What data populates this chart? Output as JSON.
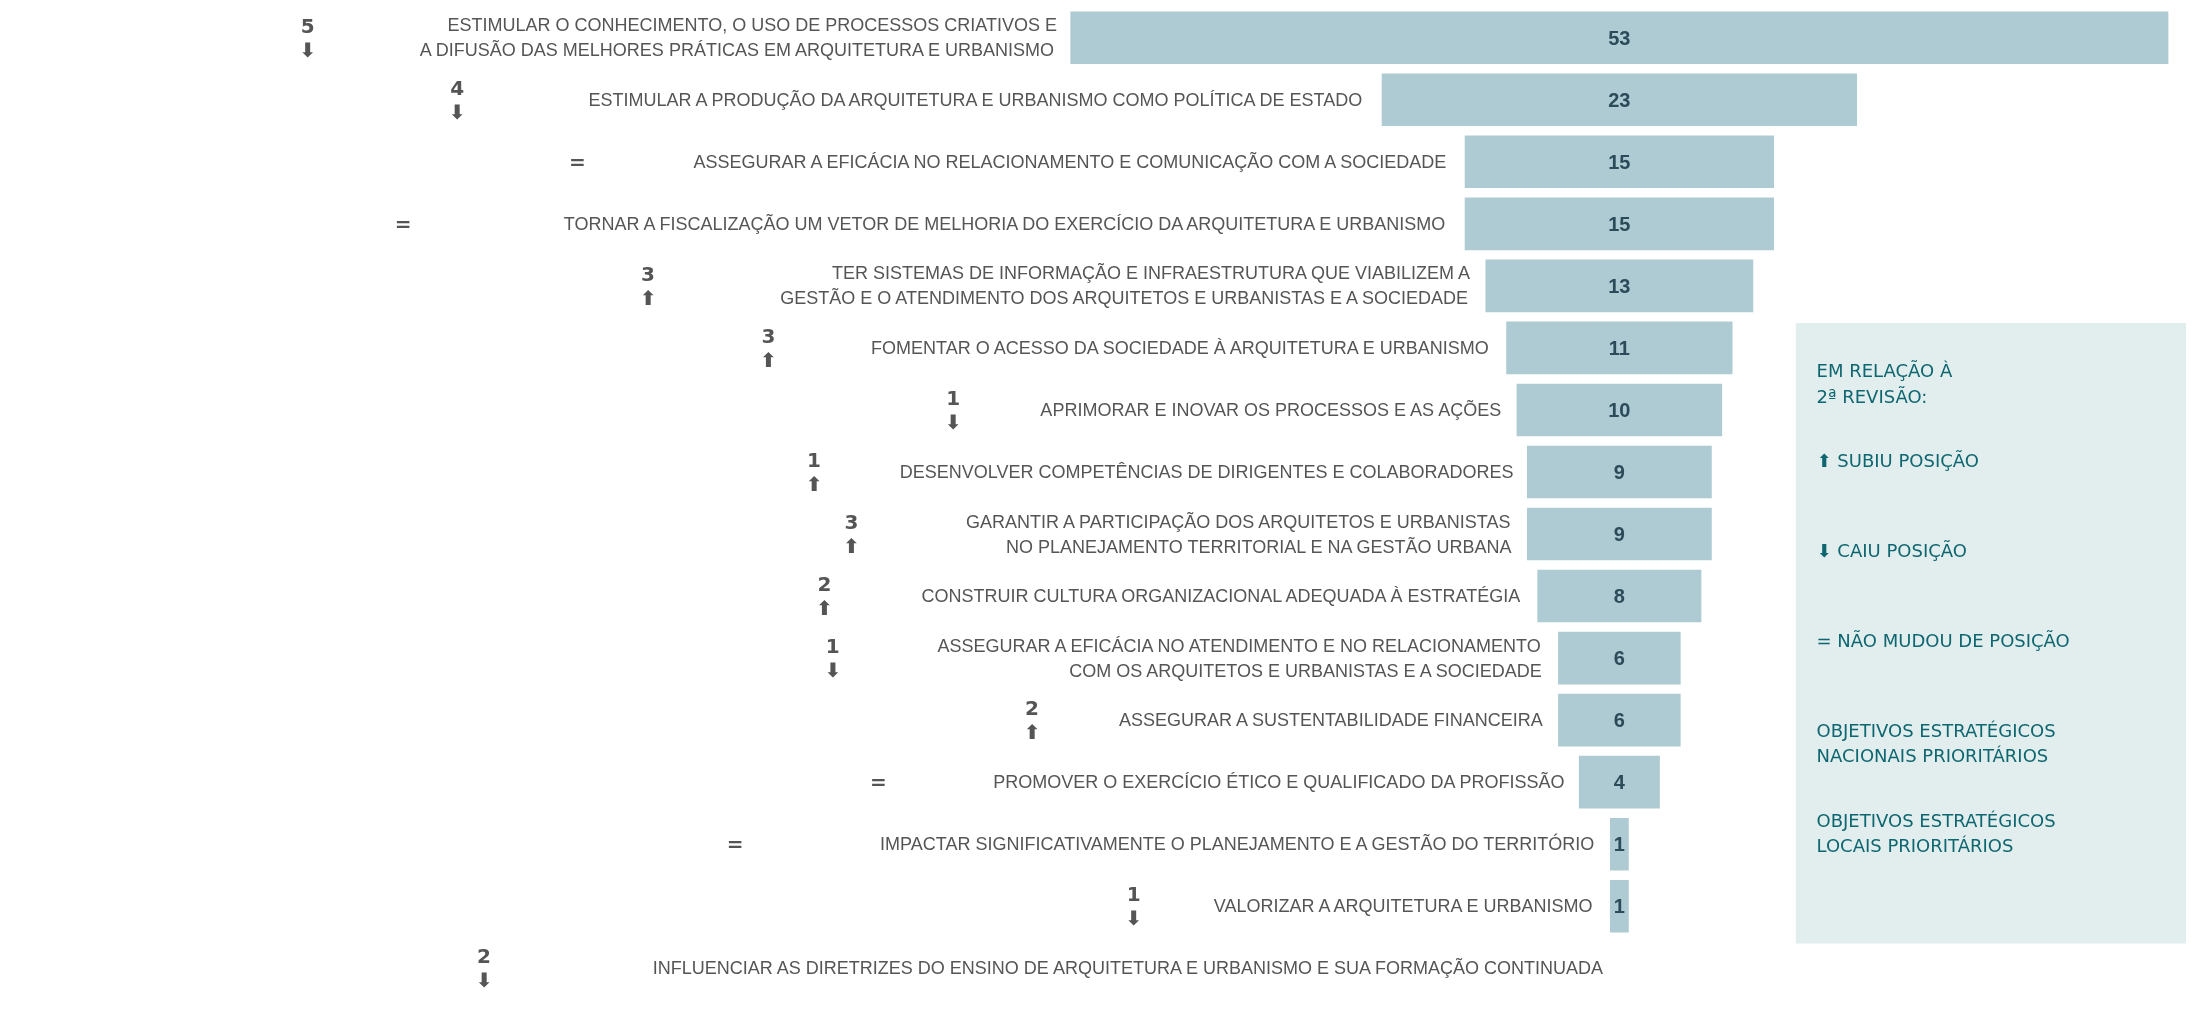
{
  "chart_data": {
    "type": "other",
    "categories": [
      "ESTIMULAR O CONHECIMENTO, O USO DE PROCESSOS CRIATIVOS E A DIFUSÃO DAS MELHORES PRÁTICAS EM ARQUITETURA E URBANISMO",
      "ESTIMULAR A PRODUÇÃO DA ARQUITETURA E URBANISMO COMO POLÍTICA DE ESTADO",
      "ASSEGURAR A EFICÁCIA NO RELACIONAMENTO E COMUNICAÇÃO COM A SOCIEDADE",
      "TORNAR A FISCALIZAÇÃO UM VETOR DE MELHORIA DO EXERCÍCIO DA ARQUITETURA E URBANISMO",
      "TER SISTEMAS DE INFORMAÇÃO E INFRAESTRUTURA QUE VIABILIZEM A GESTÃO E O ATENDIMENTO DOS ARQUITETOS E URBANISTAS E A SOCIEDADE",
      "FOMENTAR O ACESSO DA SOCIEDADE À ARQUITETURA E URBANISMO",
      "APRIMORAR E INOVAR OS PROCESSOS E AS AÇÕES",
      "DESENVOLVER COMPETÊNCIAS DE DIRIGENTES E COLABORADORES",
      "GARANTIR A PARTICIPAÇÃO DOS ARQUITETOS E URBANISTAS NO PLANEJAMENTO TERRITORIAL E NA GESTÃO URBANA",
      "CONSTRUIR CULTURA ORGANIZACIONAL ADEQUADA À ESTRATÉGIA",
      "ASSEGURAR A EFICÁCIA NO ATENDIMENTO E NO RELACIONAMENTO COM OS ARQUITETOS E URBANISTAS E A SOCIEDADE",
      "ASSEGURAR A SUSTENTABILIDADE FINANCEIRA",
      "PROMOVER O EXERCÍCIO ÉTICO E QUALIFICADO DA PROFISSÃO",
      "IMPACTAR SIGNIFICATIVAMENTE O PLANEJAMENTO E A GESTÃO DO TERRITÓRIO",
      "VALORIZAR A ARQUITETURA E URBANISMO",
      "INFLUENCIAR AS DIRETRIZES DO ENSINO DE ARQUITETURA E URBANISMO E SUA FORMAÇÃO CONTINUADA"
    ],
    "values": [
      53,
      23,
      15,
      15,
      13,
      11,
      10,
      9,
      9,
      8,
      6,
      6,
      4,
      1,
      1,
      null
    ],
    "color": "#aecbd3",
    "data_labels": true,
    "annotations": [
      {
        "text": "5\n⬇",
        "y": "ESTIMULAR O CONHECIMENTO, O USO DE PROCESSOS CRIATIVOS E A DIFUSÃO DAS MELHORES PRÁTICAS EM ARQUITETURA E URBANISMO"
      },
      {
        "text": "4\n⬇",
        "y": "ESTIMULAR A PRODUÇÃO DA ARQUITETURA E URBANISMO COMO POLÍTICA DE ESTADO"
      },
      {
        "text": "=",
        "y": "ASSEGURAR A EFICÁCIA NO RELACIONAMENTO E COMUNICAÇÃO COM A SOCIEDADE"
      },
      {
        "text": "=",
        "y": "TORNAR A FISCALIZAÇÃO UM VETOR DE MELHORIA DO EXERCÍCIO DA ARQUITETURA E URBANISMO"
      },
      {
        "text": "3\n⬆",
        "y": "TER SISTEMAS DE INFORMAÇÃO E INFRAESTRUTURA QUE VIABILIZEM A GESTÃO E O ATENDIMENTO DOS ARQUITETOS E URBANISTAS E A SOCIEDADE"
      },
      {
        "text": "3\n⬆",
        "y": "FOMENTAR O ACESSO DA SOCIEDADE À ARQUITETURA E URBANISMO"
      },
      {
        "text": "1\n⬇",
        "y": "APRIMORAR E INOVAR OS PROCESSOS E AS AÇÕES"
      },
      {
        "text": "1\n⬆",
        "y": "DESENVOLVER COMPETÊNCIAS DE DIRIGENTES E COLABORADORES"
      },
      {
        "text": "3\n⬆",
        "y": "GARANTIR A PARTICIPAÇÃO DOS ARQUITETOS E URBANISTAS NO PLANEJAMENTO TERRITORIAL E NA GESTÃO URBANA"
      },
      {
        "text": "2\n⬆",
        "y": "CONSTRUIR CULTURA ORGANIZACIONAL ADEQUADA À ESTRATÉGIA"
      },
      {
        "text": "1\n⬇",
        "y": "ASSEGURAR A EFICÁCIA NO ATENDIMENTO E NO RELACIONAMENTO COM OS ARQUITETOS E URBANISTAS E A SOCIEDADE"
      },
      {
        "text": "2\n⬆",
        "y": "ASSEGURAR A SUSTENTABILIDADE FINANCEIRA"
      },
      {
        "text": "=",
        "y": "PROMOVER O EXERCÍCIO ÉTICO E QUALIFICADO DA PROFISSÃO"
      },
      {
        "text": "=",
        "y": "IMPACTAR SIGNIFICATIVAMENTE O PLANEJAMENTO E A GESTÃO DO TERRITÓRIO"
      },
      {
        "text": "1\n⬇",
        "y": "VALORIZAR A ARQUITETURA E URBANISMO"
      },
      {
        "text": "2\n⬇",
        "y": "INFLUENCIAR AS DIRETRIZES DO ENSINO DE ARQUITETURA E URBANISMO E SUA FORMAÇÃO CONTINUADA"
      },
      "EM RELAÇÃO À 2ª REVISÃO:",
      "⬆ SUBIU POSIÇÃO",
      "⬇ CAIU POSIÇÃO",
      "= NÃO MUDOU DE POSIÇÃO",
      "OBJETIVOS ESTRATÉGICOS NACIONAIS PRIORITÁRIOS",
      "OBJETIVOS ESTRATÉGICOS LOCAIS PRIORITÁRIOS"
    ]
  }
}
